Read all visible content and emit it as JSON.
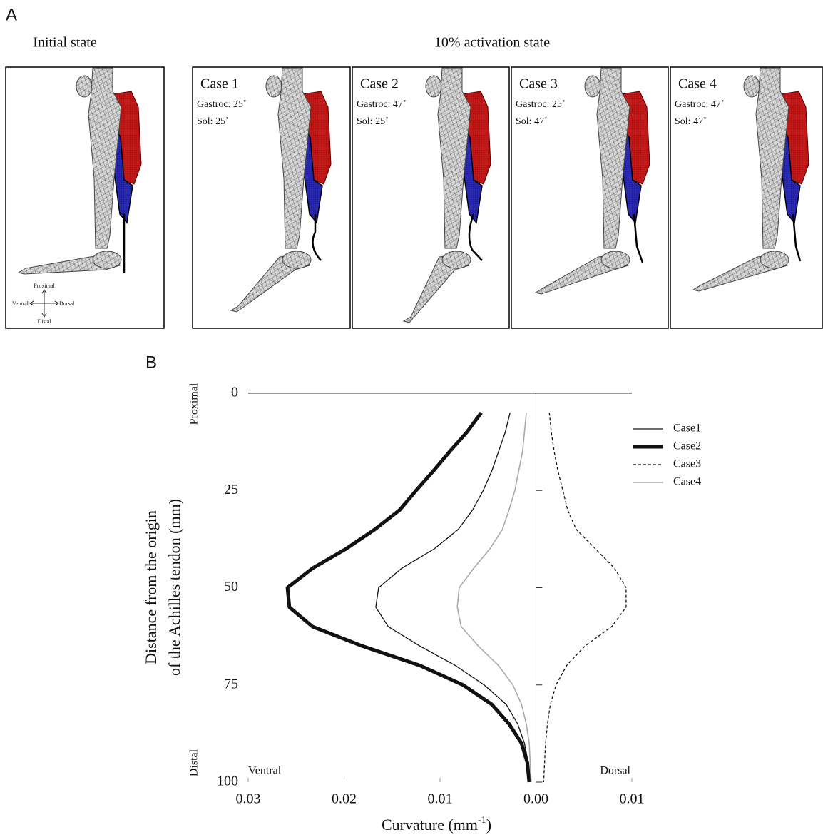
{
  "figure": {
    "panel_a": {
      "label": "A",
      "initial_title": "Initial state",
      "activation_title": "10% activation state",
      "compass": {
        "up": "Proximal",
        "left": "Ventral",
        "right": "Dorsal",
        "down": "Distal"
      },
      "cases": [
        {
          "name": "Case 1",
          "gastroc": "Gastroc: 25˚",
          "sol": "Sol: 25˚"
        },
        {
          "name": "Case 2",
          "gastroc": "Gastroc: 47˚",
          "sol": "Sol: 25˚"
        },
        {
          "name": "Case 3",
          "gastroc": "Gastroc: 25˚",
          "sol": "Sol: 47˚"
        },
        {
          "name": "Case 4",
          "gastroc": "Gastroc: 47˚",
          "sol": "Sol: 47˚"
        }
      ]
    },
    "panel_b": {
      "label": "B",
      "ylabel_lines": [
        "Distance from the origin",
        "of the Achilles tendon (mm)"
      ],
      "top_end": "Proximal",
      "bottom_end": "Distal",
      "left_side": "Ventral",
      "right_side": "Dorsal",
      "xlabel_parts": [
        "Curvature (mm",
        "-1",
        ")"
      ]
    }
  },
  "chart_data": {
    "type": "line",
    "x": [
      5,
      10,
      15,
      20,
      25,
      30,
      35,
      40,
      45,
      50,
      55,
      60,
      65,
      70,
      75,
      80,
      85,
      90,
      95,
      100
    ],
    "series": [
      {
        "name": "Case1",
        "color": "#111111",
        "line_width": 1.3,
        "dash": "none",
        "values": [
          0.0027,
          0.0032,
          0.0039,
          0.0046,
          0.0055,
          0.0066,
          0.0081,
          0.0106,
          0.014,
          0.0164,
          0.0167,
          0.0154,
          0.0121,
          0.0084,
          0.0054,
          0.0031,
          0.0019,
          0.0012,
          0.0008,
          0.0007
        ]
      },
      {
        "name": "Case2",
        "color": "#111111",
        "line_width": 5,
        "dash": "none",
        "values": [
          0.0057,
          0.0072,
          0.009,
          0.0107,
          0.0125,
          0.0142,
          0.0168,
          0.0198,
          0.0233,
          0.0259,
          0.0257,
          0.0233,
          0.0181,
          0.0121,
          0.0076,
          0.0046,
          0.0028,
          0.0015,
          0.0009,
          0.0007
        ]
      },
      {
        "name": "Case3",
        "color": "#111111",
        "line_width": 1.3,
        "dash": "4 3",
        "values": [
          -0.0014,
          -0.0016,
          -0.0019,
          -0.0023,
          -0.0028,
          -0.0033,
          -0.0042,
          -0.0062,
          -0.0082,
          -0.0094,
          -0.0094,
          -0.0079,
          -0.0051,
          -0.0032,
          -0.0021,
          -0.0015,
          -0.0012,
          -0.001,
          -0.0009,
          -0.0008
        ]
      },
      {
        "name": "Case4",
        "color": "#aaaaaa",
        "line_width": 1.6,
        "dash": "none",
        "values": [
          0.001,
          0.0012,
          0.0014,
          0.0018,
          0.0022,
          0.0028,
          0.0035,
          0.0048,
          0.0065,
          0.008,
          0.0082,
          0.0078,
          0.006,
          0.0039,
          0.0024,
          0.0015,
          0.001,
          0.0007,
          0.0006,
          0.0005
        ]
      }
    ],
    "value_axis": "horizontal",
    "xlim": [
      0.03,
      -0.01
    ],
    "xticks": [
      0.03,
      0.02,
      0.01,
      {
        "value": 0,
        "label": "0.00"
      },
      {
        "value": -0.01,
        "label": "0.01"
      }
    ],
    "ylim": [
      0,
      100
    ],
    "yticks": [
      0,
      25,
      50,
      75,
      100
    ],
    "y_inverted": true,
    "grid": false,
    "legend": "upper right"
  }
}
